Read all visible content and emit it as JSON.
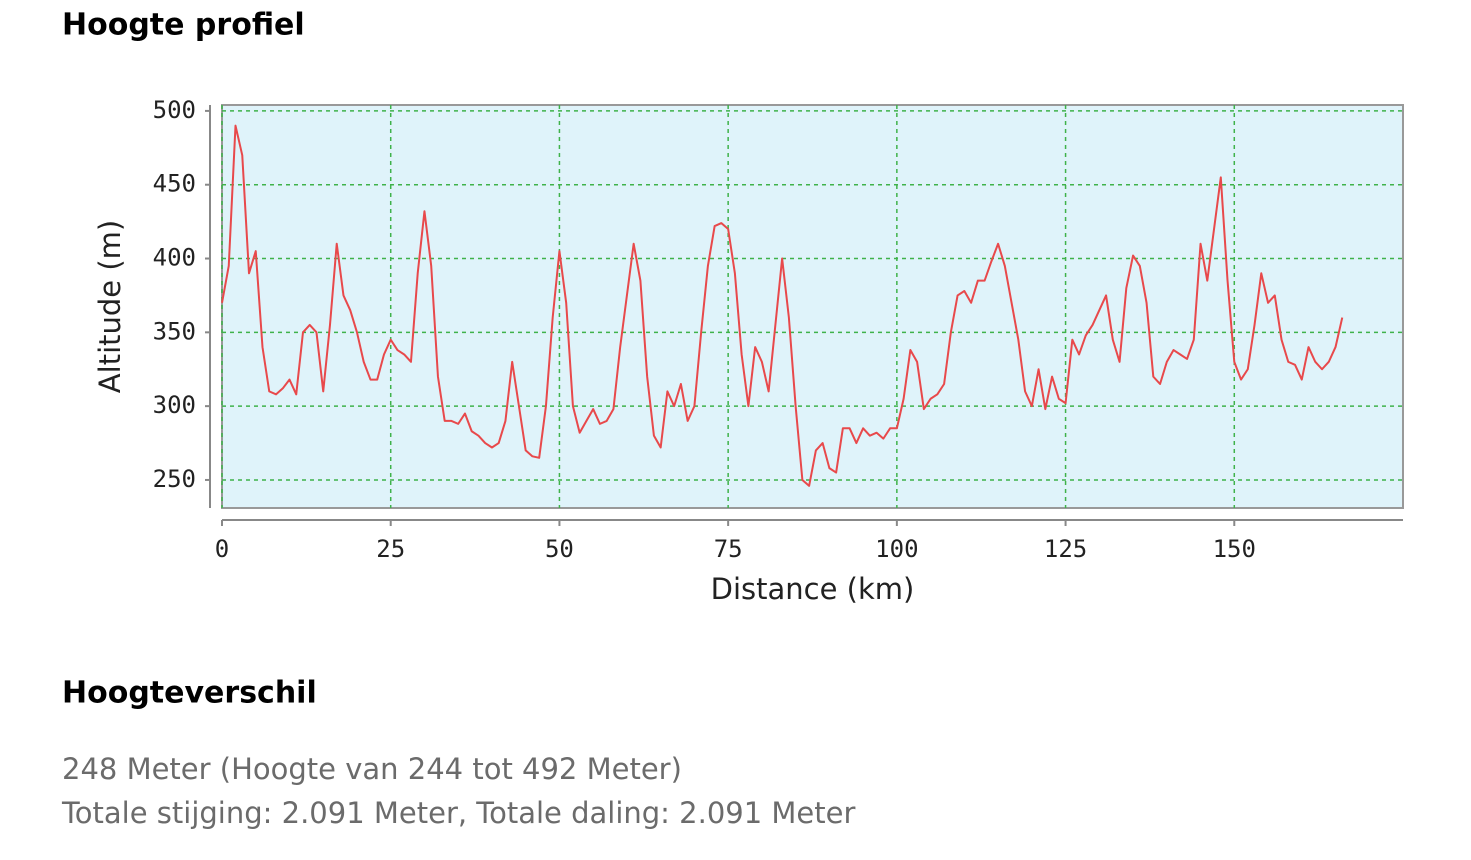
{
  "page_title": "Hoogte profiel",
  "chart_data": {
    "type": "line",
    "xlabel": "Distance (km)",
    "ylabel": "Altitude (m)",
    "x": [
      0,
      1,
      2,
      3,
      4,
      5,
      6,
      7,
      8,
      9,
      10,
      11,
      12,
      13,
      14,
      15,
      16,
      17,
      18,
      19,
      20,
      21,
      22,
      23,
      24,
      25,
      26,
      27,
      28,
      29,
      30,
      31,
      32,
      33,
      34,
      35,
      36,
      37,
      38,
      39,
      40,
      41,
      42,
      43,
      44,
      45,
      46,
      47,
      48,
      49,
      50,
      51,
      52,
      53,
      54,
      55,
      56,
      57,
      58,
      59,
      60,
      61,
      62,
      63,
      64,
      65,
      66,
      67,
      68,
      69,
      70,
      71,
      72,
      73,
      74,
      75,
      76,
      77,
      78,
      79,
      80,
      81,
      82,
      83,
      84,
      85,
      86,
      87,
      88,
      89,
      90,
      91,
      92,
      93,
      94,
      95,
      96,
      97,
      98,
      99,
      100,
      101,
      102,
      103,
      104,
      105,
      106,
      107,
      108,
      109,
      110,
      111,
      112,
      113,
      114,
      115,
      116,
      117,
      118,
      119,
      120,
      121,
      122,
      123,
      124,
      125,
      126,
      127,
      128,
      129,
      130,
      131,
      132,
      133,
      134,
      135,
      136,
      137,
      138,
      139,
      140,
      141,
      142,
      143,
      144,
      145,
      146,
      147,
      148,
      149,
      150,
      151,
      152,
      153,
      154,
      155,
      156,
      157,
      158,
      159,
      160,
      161,
      162,
      163,
      164,
      165,
      166
    ],
    "series": [
      {
        "color": "#e8494b",
        "values": [
          370,
          395,
          490,
          470,
          390,
          405,
          340,
          310,
          308,
          312,
          318,
          308,
          350,
          355,
          350,
          310,
          355,
          410,
          375,
          365,
          350,
          330,
          318,
          318,
          335,
          345,
          338,
          335,
          330,
          390,
          432,
          395,
          320,
          290,
          290,
          288,
          295,
          283,
          280,
          275,
          272,
          275,
          290,
          330,
          300,
          270,
          266,
          265,
          300,
          360,
          405,
          370,
          300,
          282,
          290,
          298,
          288,
          290,
          298,
          340,
          375,
          410,
          385,
          320,
          280,
          272,
          310,
          300,
          315,
          290,
          300,
          350,
          395,
          422,
          424,
          420,
          390,
          335,
          300,
          340,
          330,
          310,
          355,
          400,
          360,
          300,
          250,
          246,
          270,
          275,
          258,
          255,
          285,
          285,
          275,
          285,
          280,
          282,
          278,
          285,
          285,
          305,
          338,
          330,
          298,
          305,
          308,
          315,
          350,
          375,
          378,
          370,
          385,
          385,
          398,
          410,
          395,
          370,
          345,
          310,
          300,
          325,
          298,
          320,
          305,
          302,
          345,
          335,
          348,
          355,
          365,
          375,
          345,
          330,
          380,
          402,
          395,
          370,
          320,
          315,
          330,
          338,
          335,
          332,
          345,
          410,
          385,
          420,
          455,
          385,
          330,
          318,
          325,
          355,
          390,
          370,
          375,
          345,
          330,
          328,
          318,
          340,
          330,
          325,
          330,
          340,
          360
        ]
      }
    ],
    "xlim": [
      0,
      175
    ],
    "ylim": [
      231,
      504
    ],
    "xticks": [
      0,
      25,
      50,
      75,
      100,
      125,
      150
    ],
    "yticks": [
      250,
      300,
      350,
      400,
      450,
      500
    ],
    "grid": true,
    "background": "#dff3fa",
    "grid_color": "#3fb24a"
  },
  "summary": {
    "heading": "Hoogteverschil",
    "lines": [
      "248 Meter (Hoogte van 244 tot 492 Meter)",
      "Totale stijging: 2.091 Meter, Totale daling: 2.091 Meter"
    ]
  }
}
